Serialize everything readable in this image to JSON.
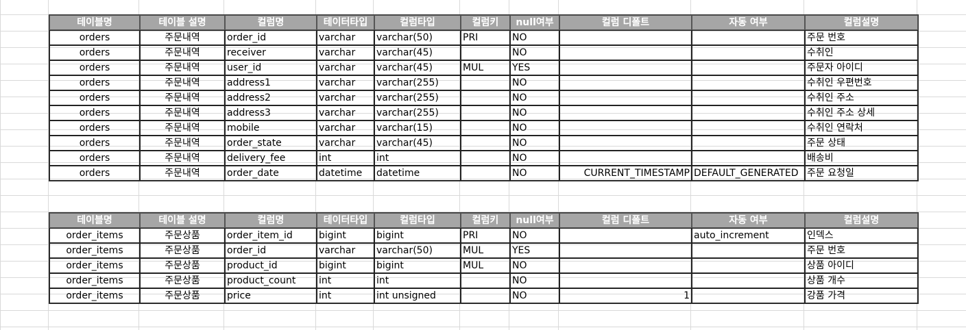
{
  "headers": [
    "테이블명",
    "테이블 설명",
    "컬럼명",
    "테이터타입",
    "컬럼타입",
    "컬럼키",
    "null여부",
    "컬럼 디폴트",
    "자동 여부",
    "컬럼설명"
  ],
  "tables": [
    {
      "rows": [
        [
          "orders",
          "주문내역",
          "order_id",
          "varchar",
          "varchar(50)",
          "PRI",
          "NO",
          "",
          "",
          "주문 번호"
        ],
        [
          "orders",
          "주문내역",
          "receiver",
          "varchar",
          "varchar(45)",
          "",
          "NO",
          "",
          "",
          "수취인"
        ],
        [
          "orders",
          "주문내역",
          "user_id",
          "varchar",
          "varchar(45)",
          "MUL",
          "YES",
          "",
          "",
          "주문자 아이디"
        ],
        [
          "orders",
          "주문내역",
          "address1",
          "varchar",
          "varchar(255)",
          "",
          "NO",
          "",
          "",
          "수취인 우편번호"
        ],
        [
          "orders",
          "주문내역",
          "address2",
          "varchar",
          "varchar(255)",
          "",
          "NO",
          "",
          "",
          "수취인 주소"
        ],
        [
          "orders",
          "주문내역",
          "address3",
          "varchar",
          "varchar(255)",
          "",
          "NO",
          "",
          "",
          "수취인 주소 상세"
        ],
        [
          "orders",
          "주문내역",
          "mobile",
          "varchar",
          "varchar(15)",
          "",
          "NO",
          "",
          "",
          "수취인 연락처"
        ],
        [
          "orders",
          "주문내역",
          "order_state",
          "varchar",
          "varchar(45)",
          "",
          "NO",
          "",
          "",
          "주문 상태"
        ],
        [
          "orders",
          "주문내역",
          "delivery_fee",
          "int",
          "int",
          "",
          "NO",
          "",
          "",
          "배송비"
        ],
        [
          "orders",
          "주문내역",
          "order_date",
          "datetime",
          "datetime",
          "",
          "NO",
          "CURRENT_TIMESTAMP",
          "DEFAULT_GENERATED",
          "주문 요청일"
        ]
      ]
    },
    {
      "rows": [
        [
          "order_items",
          "주문상품",
          "order_item_id",
          "bigint",
          "bigint",
          "PRI",
          "NO",
          "",
          "auto_increment",
          "인덱스"
        ],
        [
          "order_items",
          "주문상품",
          "order_id",
          "varchar",
          "varchar(50)",
          "MUL",
          "YES",
          "",
          "",
          "주문 번호"
        ],
        [
          "order_items",
          "주문상품",
          "product_id",
          "bigint",
          "bigint",
          "MUL",
          "NO",
          "",
          "",
          "상품 아이디"
        ],
        [
          "order_items",
          "주문상품",
          "product_count",
          "int",
          "int",
          "",
          "NO",
          "",
          "",
          "상품 개수"
        ],
        [
          "order_items",
          "주문상품",
          "price",
          "int",
          "int unsigned",
          "",
          "NO",
          "1",
          "",
          "강품 가격"
        ]
      ]
    }
  ]
}
